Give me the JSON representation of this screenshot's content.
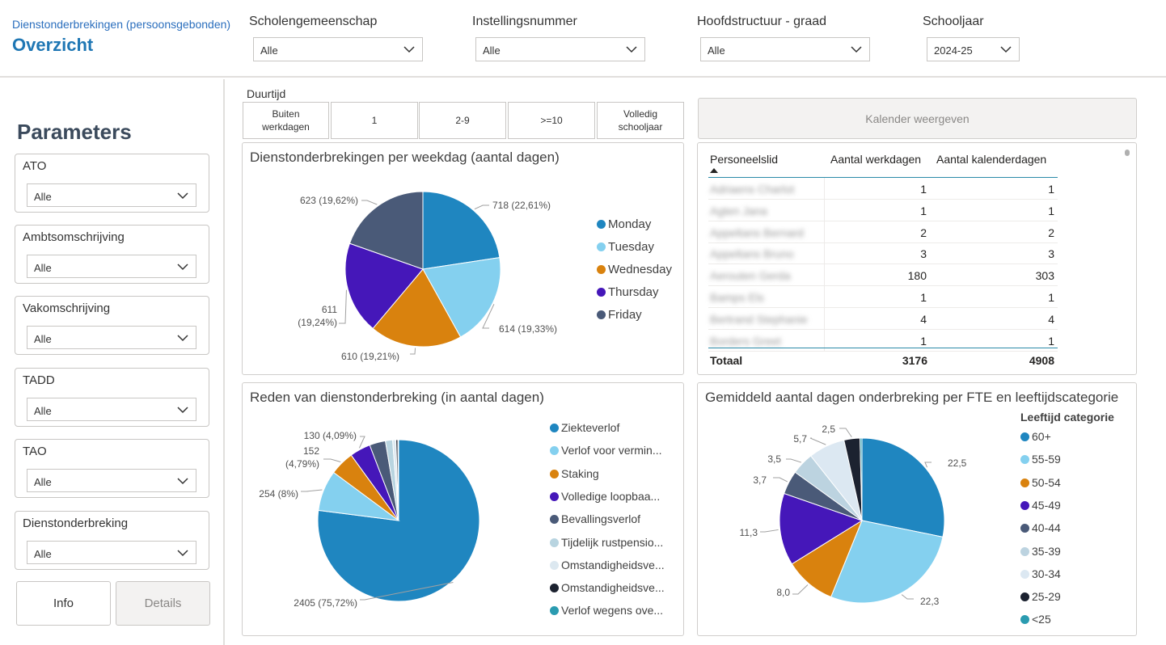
{
  "header": {
    "subtitle": "Dienstonderbrekingen (persoonsgebonden)",
    "title": "Overzicht",
    "slicers": [
      {
        "label": "Scholengemeenschap",
        "value": "Alle"
      },
      {
        "label": "Instellingsnummer",
        "value": "Alle"
      },
      {
        "label": "Hoofdstructuur - graad",
        "value": "Alle"
      },
      {
        "label": "Schooljaar",
        "value": "2024-25"
      }
    ]
  },
  "parameters": {
    "title": "Parameters",
    "items": [
      {
        "label": "ATO",
        "value": "Alle"
      },
      {
        "label": "Ambtsomschrijving",
        "value": "Alle"
      },
      {
        "label": "Vakomschrijving",
        "value": "Alle"
      },
      {
        "label": "TADD",
        "value": "Alle"
      },
      {
        "label": "TAO",
        "value": "Alle"
      },
      {
        "label": "Dienstonderbreking",
        "value": "Alle"
      }
    ],
    "info_label": "Info",
    "details_label": "Details"
  },
  "duration": {
    "label": "Duurtijd",
    "options": [
      "Buiten werkdagen",
      "1",
      "2-9",
      ">=10",
      "Volledig schooljaar"
    ]
  },
  "calendar_button": "Kalender weergeven",
  "table": {
    "headers": [
      "Personeelslid",
      "Aantal werkdagen",
      "Aantal kalenderdagen"
    ],
    "rows": [
      {
        "name": "Adriaens Charlot",
        "werkdagen": "1",
        "kalenderdagen": "1"
      },
      {
        "name": "Agten Jana",
        "werkdagen": "1",
        "kalenderdagen": "1"
      },
      {
        "name": "Appeltans Bernard",
        "werkdagen": "2",
        "kalenderdagen": "2"
      },
      {
        "name": "Appeltans Bruno",
        "werkdagen": "3",
        "kalenderdagen": "3"
      },
      {
        "name": "Aerouten Gerda",
        "werkdagen": "180",
        "kalenderdagen": "303"
      },
      {
        "name": "Bamps Els",
        "werkdagen": "1",
        "kalenderdagen": "1"
      },
      {
        "name": "Bertrand Stephanie",
        "werkdagen": "4",
        "kalenderdagen": "4"
      },
      {
        "name": "Borders Greet",
        "werkdagen": "1",
        "kalenderdagen": "1"
      }
    ],
    "total_label": "Totaal",
    "total_werkdagen": "3176",
    "total_kalenderdagen": "4908"
  },
  "chart_data": [
    {
      "type": "pie",
      "title": "Dienstonderbrekingen per weekdag (aantal dagen)",
      "categories": [
        "Monday",
        "Tuesday",
        "Wednesday",
        "Thursday",
        "Friday"
      ],
      "values": [
        718,
        614,
        610,
        611,
        623
      ],
      "labels": [
        "718 (22,61%)",
        "614 (19,33%)",
        "610 (19,21%)",
        "611 (19,24%)",
        "623 (19,62%)"
      ],
      "colors": [
        "#1f86c0",
        "#84d0ef",
        "#d9820e",
        "#4517b9",
        "#4a5a78"
      ]
    },
    {
      "type": "pie",
      "title": "Reden van dienstonderbreking (in aantal dagen)",
      "categories": [
        "Ziekteverlof",
        "Verlof voor vermin...",
        "Staking",
        "Volledige loopbaa...",
        "Bevallingsverlof",
        "Tijdelijk rustpensio...",
        "Omstandigheidsve...",
        "Omstandigheidsve...",
        "Verlof wegens ove..."
      ],
      "values": [
        2405,
        254,
        152,
        130,
        100,
        45,
        20,
        12,
        5
      ],
      "labels": [
        "2405 (75,72%)",
        "254 (8%)",
        "152 (4,79%)",
        "130 (4,09%)",
        "",
        "",
        "",
        "",
        ""
      ],
      "colors": [
        "#1f86c0",
        "#84d0ef",
        "#d9820e",
        "#4517b9",
        "#4a5a78",
        "#b8d4e0",
        "#dce8f0",
        "#1c2230",
        "#2a9bb0"
      ]
    },
    {
      "type": "pie",
      "title": "Gemiddeld aantal dagen onderbreking per FTE en leeftijdscategorie",
      "legend_title": "Leeftijd categorie",
      "categories": [
        "60+",
        "55-59",
        "50-54",
        "45-49",
        "40-44",
        "35-39",
        "30-34",
        "25-29",
        "<25"
      ],
      "values": [
        22.5,
        22.3,
        8.0,
        11.3,
        3.7,
        3.5,
        5.7,
        2.5,
        0.3
      ],
      "labels": [
        "22,5",
        "22,3",
        "8,0",
        "11,3",
        "3,7",
        "3,5",
        "5,7",
        "2,5",
        ""
      ],
      "colors": [
        "#1f86c0",
        "#84d0ef",
        "#d9820e",
        "#4517b9",
        "#4a5a78",
        "#bcd3e0",
        "#dce8f2",
        "#1c2230",
        "#2a9bb0"
      ]
    }
  ]
}
